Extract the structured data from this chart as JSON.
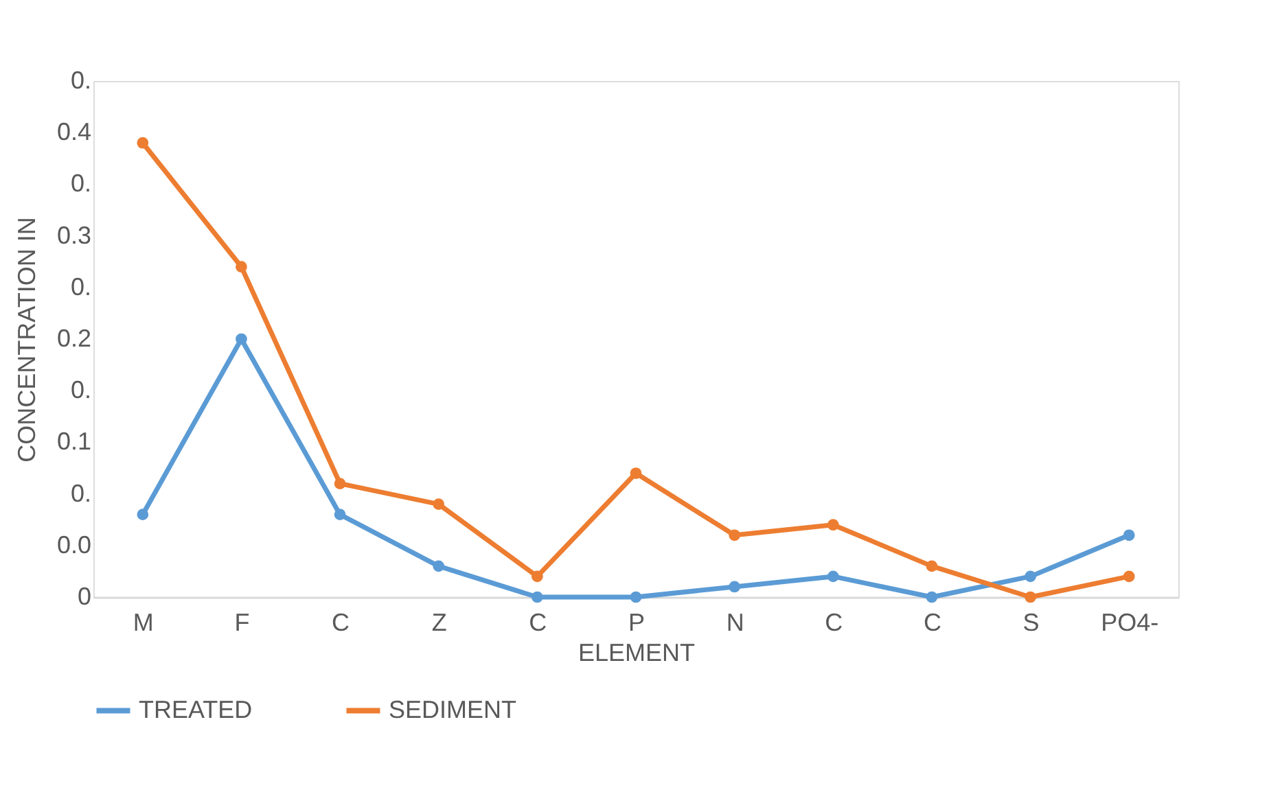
{
  "chart_data": {
    "type": "line",
    "xlabel": "ELEMENT",
    "ylabel": "CONCENTRATION IN",
    "categories": [
      "M",
      "F",
      "C",
      "Z",
      "C",
      "P",
      "N",
      "C",
      "C",
      "S",
      "PO4-"
    ],
    "series": [
      {
        "name": "TREATED",
        "color": "#5b9bd5",
        "values": [
          0.08,
          0.25,
          0.08,
          0.03,
          0,
          0,
          0.01,
          0.02,
          0,
          0.02,
          0.06
        ]
      },
      {
        "name": "SEDIMENT",
        "color": "#ed7d31",
        "values": [
          0.44,
          0.32,
          0.11,
          0.09,
          0.02,
          0.12,
          0.06,
          0.07,
          0.03,
          0,
          0.02
        ]
      }
    ],
    "ylim": [
      0,
      0.5
    ],
    "yticks": [
      {
        "value": 0,
        "label": "0"
      },
      {
        "value": 0.05,
        "label": "0.0"
      },
      {
        "value": 0.1,
        "label": "0."
      },
      {
        "value": 0.15,
        "label": "0.1"
      },
      {
        "value": 0.2,
        "label": "0."
      },
      {
        "value": 0.25,
        "label": "0.2"
      },
      {
        "value": 0.3,
        "label": "0."
      },
      {
        "value": 0.35,
        "label": "0.3"
      },
      {
        "value": 0.4,
        "label": "0."
      },
      {
        "value": 0.45,
        "label": "0.4"
      },
      {
        "value": 0.5,
        "label": "0."
      }
    ],
    "grid": false,
    "legend": "bottom",
    "marker": "circle",
    "line_style": "solid"
  }
}
